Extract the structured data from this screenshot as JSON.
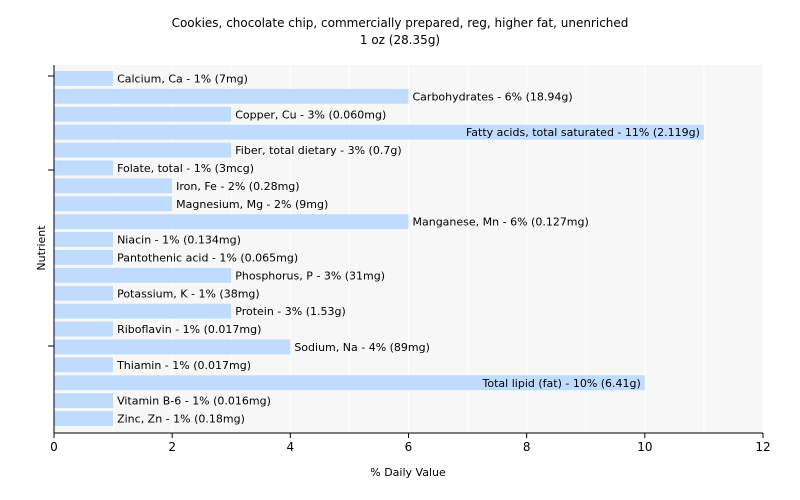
{
  "chart_data": {
    "type": "bar",
    "orientation": "horizontal",
    "title": "Cookies, chocolate chip, commercially prepared, reg, higher fat, unenriched",
    "subtitle": "1 oz (28.35g)",
    "xlabel": "% Daily Value",
    "ylabel": "Nutrient",
    "xlim": [
      0,
      12
    ],
    "xticks": [
      0,
      2,
      4,
      6,
      8,
      10,
      12
    ],
    "grid": true,
    "bar_color": "#bfdcff",
    "categories": [
      "Calcium, Ca",
      "Carbohydrates",
      "Copper, Cu",
      "Fatty acids, total saturated",
      "Fiber, total dietary",
      "Folate, total",
      "Iron, Fe",
      "Magnesium, Mg",
      "Manganese, Mn",
      "Niacin",
      "Pantothenic acid",
      "Phosphorus, P",
      "Potassium, K",
      "Protein",
      "Riboflavin",
      "Sodium, Na",
      "Thiamin",
      "Total lipid (fat)",
      "Vitamin B-6",
      "Zinc, Zn"
    ],
    "values": [
      1,
      6,
      3,
      11,
      3,
      1,
      2,
      2,
      6,
      1,
      1,
      3,
      1,
      3,
      1,
      4,
      1,
      10,
      1,
      1
    ],
    "labels": [
      "Calcium, Ca - 1% (7mg)",
      "Carbohydrates - 6% (18.94g)",
      "Copper, Cu - 3% (0.060mg)",
      "Fatty acids, total saturated - 11% (2.119g)",
      "Fiber, total dietary - 3% (0.7g)",
      "Folate, total - 1% (3mcg)",
      "Iron, Fe - 2% (0.28mg)",
      "Magnesium, Mg - 2% (9mg)",
      "Manganese, Mn - 6% (0.127mg)",
      "Niacin - 1% (0.134mg)",
      "Pantothenic acid - 1% (0.065mg)",
      "Phosphorus, P - 3% (31mg)",
      "Potassium, K - 1% (38mg)",
      "Protein - 3% (1.53g)",
      "Riboflavin - 1% (0.017mg)",
      "Sodium, Na - 4% (89mg)",
      "Thiamin - 1% (0.017mg)",
      "Total lipid (fat) - 10% (6.41g)",
      "Vitamin B-6 - 1% (0.016mg)",
      "Zinc, Zn - 1% (0.18mg)"
    ]
  }
}
